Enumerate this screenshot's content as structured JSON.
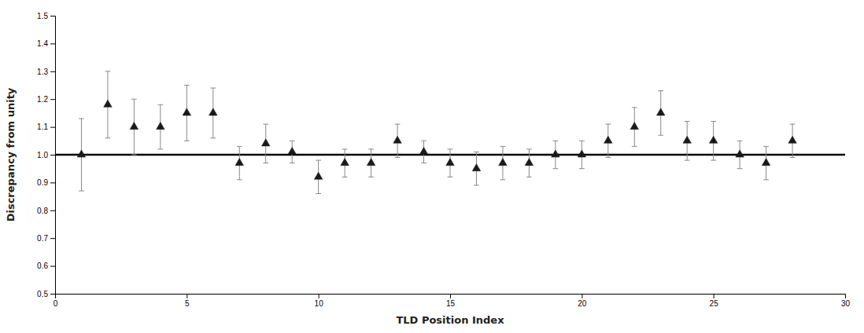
{
  "chart_data": {
    "type": "scatter",
    "x_label": "TLD Position Index",
    "y_label": "Discrepancy from unity",
    "x": [
      1,
      2,
      3,
      4,
      5,
      6,
      7,
      8,
      9,
      10,
      11,
      12,
      13,
      14,
      15,
      16,
      17,
      18,
      19,
      20,
      21,
      22,
      23,
      24,
      25,
      26,
      27,
      28
    ],
    "values": [
      1.0,
      1.18,
      1.1,
      1.1,
      1.15,
      1.15,
      0.97,
      1.04,
      1.01,
      0.92,
      0.97,
      0.97,
      1.05,
      1.01,
      0.97,
      0.95,
      0.97,
      0.97,
      1.0,
      1.0,
      1.05,
      1.1,
      1.15,
      1.05,
      1.05,
      1.0,
      0.97,
      1.05
    ],
    "error_upper": [
      0.13,
      0.12,
      0.1,
      0.08,
      0.1,
      0.09,
      0.06,
      0.07,
      0.04,
      0.06,
      0.05,
      0.05,
      0.06,
      0.04,
      0.05,
      0.06,
      0.06,
      0.05,
      0.05,
      0.05,
      0.06,
      0.07,
      0.08,
      0.07,
      0.07,
      0.05,
      0.06,
      0.06
    ],
    "error_lower": [
      0.13,
      0.12,
      0.1,
      0.08,
      0.1,
      0.09,
      0.06,
      0.07,
      0.04,
      0.06,
      0.05,
      0.05,
      0.06,
      0.04,
      0.05,
      0.06,
      0.06,
      0.05,
      0.05,
      0.05,
      0.06,
      0.07,
      0.08,
      0.07,
      0.07,
      0.05,
      0.06,
      0.06
    ],
    "reference_line": 1.0,
    "color": "#1a1a1a",
    "marker": "triangle",
    "grid": false,
    "xlim": [
      0,
      30
    ],
    "ylim": [
      0.5,
      1.5
    ],
    "xticks": [
      0,
      5,
      10,
      15,
      20,
      25,
      30
    ],
    "yticks": [
      0.5,
      0.6,
      0.7,
      0.8,
      0.9,
      {
        "value": 1.0,
        "label": "1.0"
      },
      1.1,
      1.2,
      1.3,
      1.4,
      1.5
    ]
  }
}
